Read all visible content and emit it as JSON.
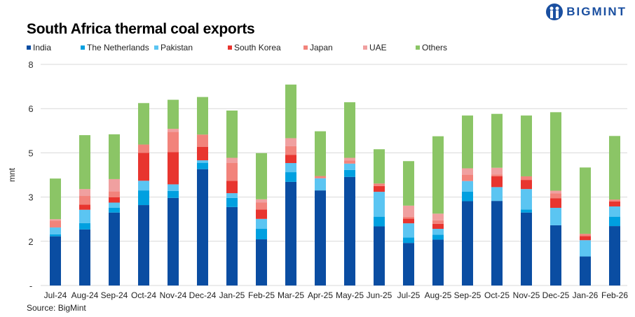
{
  "brand": "BIGMINT",
  "chart_data": {
    "type": "bar",
    "stacked": true,
    "title": "South Africa thermal coal exports",
    "ylabel": "mnt",
    "xlabel": "",
    "ylim": [
      0,
      8
    ],
    "yticks": [
      0,
      1.6,
      3.2,
      4.8,
      6.4,
      8
    ],
    "ytick_labels": [
      "-",
      "2",
      "3",
      "5",
      "6",
      "8"
    ],
    "grid": true,
    "legend_position": "top-left",
    "source": "Source: BigMint",
    "categories": [
      "Jul-24",
      "Aug-24",
      "Sep-24",
      "Oct-24",
      "Nov-24",
      "Dec-24",
      "Jan-25",
      "Feb-25",
      "Mar-25",
      "Apr-25",
      "May-25",
      "Jun-25",
      "Jul-25",
      "Aug-25",
      "Sep-25",
      "Oct-25",
      "Nov-25",
      "Dec-25",
      "Jan-26",
      "Feb-26"
    ],
    "series": [
      {
        "name": "India",
        "color": "#0a4da2",
        "values": [
          1.78,
          2.03,
          2.64,
          2.91,
          3.17,
          4.21,
          2.84,
          1.67,
          3.75,
          3.44,
          3.93,
          2.14,
          1.54,
          1.66,
          3.05,
          3.06,
          2.64,
          2.18,
          1.05,
          2.15
        ]
      },
      {
        "name": "The Netherlands",
        "color": "#00a0e0",
        "values": [
          0.07,
          0.23,
          0.17,
          0.53,
          0.25,
          0.23,
          0.33,
          0.38,
          0.35,
          0,
          0.25,
          0.35,
          0.2,
          0.18,
          0.35,
          0,
          0.11,
          0,
          0,
          0.34
        ]
      },
      {
        "name": "Pakistan",
        "color": "#5bc5f2",
        "values": [
          0.25,
          0.48,
          0.19,
          0.35,
          0.24,
          0.09,
          0.17,
          0.36,
          0.33,
          0.44,
          0.23,
          0.9,
          0.51,
          0.21,
          0.38,
          0.5,
          0.74,
          0.63,
          0.59,
          0.37
        ]
      },
      {
        "name": "South Korea",
        "color": "#e8352f",
        "values": [
          0,
          0.19,
          0.19,
          1.01,
          1.17,
          0.49,
          0.45,
          0.34,
          0.3,
          0,
          0,
          0.21,
          0.17,
          0.18,
          0,
          0.39,
          0.33,
          0.35,
          0.15,
          0.18
        ]
      },
      {
        "name": "Japan",
        "color": "#f2837b",
        "values": [
          0.25,
          0.31,
          0.22,
          0.3,
          0.73,
          0.44,
          0.65,
          0.25,
          0.31,
          0.08,
          0.11,
          0.09,
          0.07,
          0.13,
          0.23,
          0.07,
          0.13,
          0.17,
          0.08,
          0.07
        ]
      },
      {
        "name": "UAE",
        "color": "#f0a0a0",
        "values": [
          0.05,
          0.25,
          0.44,
          0,
          0.11,
          0,
          0.18,
          0.12,
          0.29,
          0,
          0.1,
          0,
          0.4,
          0.24,
          0.23,
          0.24,
          0,
          0.1,
          0,
          0
        ]
      },
      {
        "name": "Others",
        "color": "#8bc566",
        "values": [
          1.47,
          1.95,
          1.62,
          1.5,
          1.05,
          1.36,
          1.71,
          1.67,
          1.94,
          1.62,
          2.01,
          1.24,
          1.61,
          2.8,
          1.91,
          1.95,
          2.2,
          2.84,
          2.4,
          2.3
        ]
      }
    ]
  }
}
